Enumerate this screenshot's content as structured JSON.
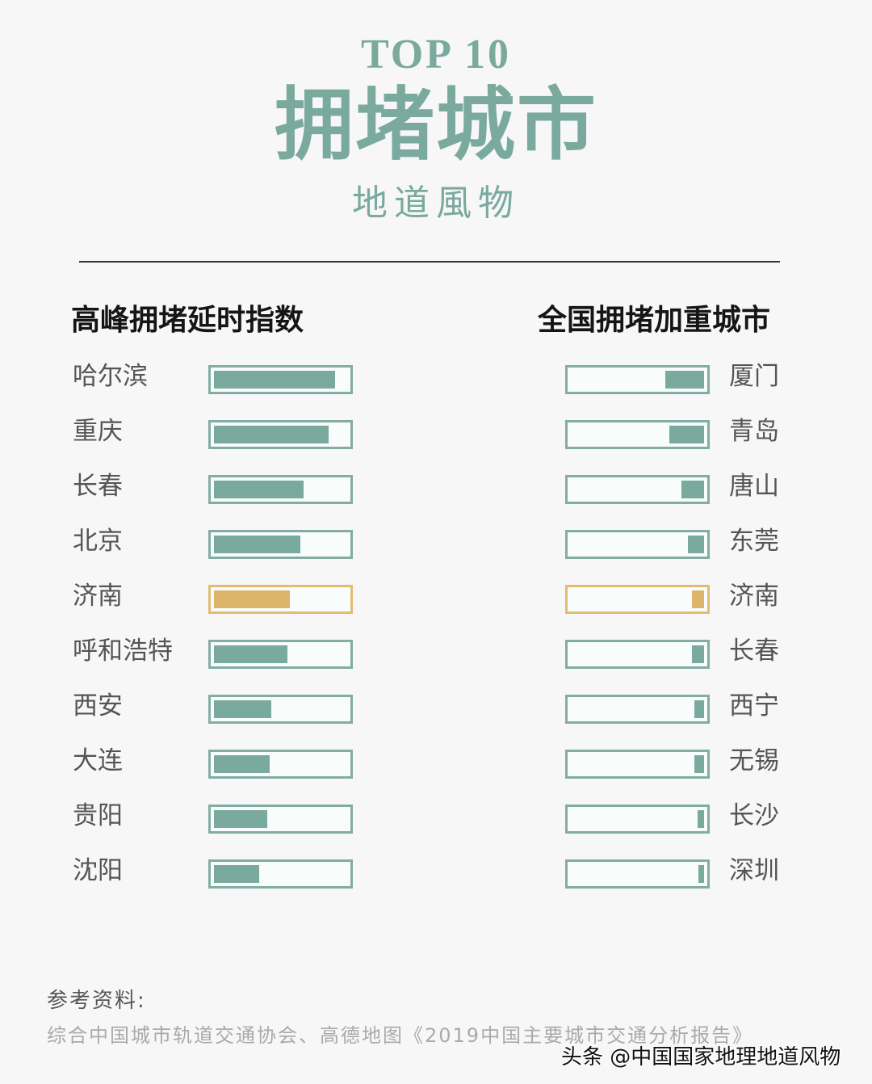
{
  "header": {
    "top_label": "TOP 10",
    "title": "拥堵城市",
    "brand": "地道風物"
  },
  "colors": {
    "accent": "#7aaa9d",
    "highlight": "#dcb56b",
    "box_border": "#83ada2",
    "highlight_border": "#e1bd72"
  },
  "left": {
    "heading": "高峰拥堵延时指数",
    "items": [
      {
        "city": "哈尔滨",
        "value": 0.91,
        "highlight": false
      },
      {
        "city": "重庆",
        "value": 0.86,
        "highlight": false
      },
      {
        "city": "长春",
        "value": 0.67,
        "highlight": false
      },
      {
        "city": "北京",
        "value": 0.65,
        "highlight": false
      },
      {
        "city": "济南",
        "value": 0.57,
        "highlight": true
      },
      {
        "city": "呼和浩特",
        "value": 0.55,
        "highlight": false
      },
      {
        "city": "西安",
        "value": 0.43,
        "highlight": false
      },
      {
        "city": "大连",
        "value": 0.42,
        "highlight": false
      },
      {
        "city": "贵阳",
        "value": 0.4,
        "highlight": false
      },
      {
        "city": "沈阳",
        "value": 0.34,
        "highlight": false
      }
    ]
  },
  "right": {
    "heading": "全国拥堵加重城市",
    "items": [
      {
        "city": "厦门",
        "value": 0.29,
        "highlight": false
      },
      {
        "city": "青岛",
        "value": 0.26,
        "highlight": false
      },
      {
        "city": "唐山",
        "value": 0.17,
        "highlight": false
      },
      {
        "city": "东莞",
        "value": 0.12,
        "highlight": false
      },
      {
        "city": "济南",
        "value": 0.09,
        "highlight": true
      },
      {
        "city": "长春",
        "value": 0.09,
        "highlight": false
      },
      {
        "city": "西宁",
        "value": 0.07,
        "highlight": false
      },
      {
        "city": "无锡",
        "value": 0.07,
        "highlight": false
      },
      {
        "city": "长沙",
        "value": 0.05,
        "highlight": false
      },
      {
        "city": "深圳",
        "value": 0.04,
        "highlight": false
      }
    ]
  },
  "footer": {
    "ref_heading": "参考资料:",
    "ref_text": "综合中国城市轨道交通协会、高德地图《2019中国主要城市交通分析报告》",
    "watermark": "头条 @中国国家地理地道风物"
  },
  "chart_data": [
    {
      "type": "bar",
      "title": "高峰拥堵延时指数",
      "orientation": "horizontal",
      "categories": [
        "哈尔滨",
        "重庆",
        "长春",
        "北京",
        "济南",
        "呼和浩特",
        "西安",
        "大连",
        "贵阳",
        "沈阳"
      ],
      "values": [
        0.91,
        0.86,
        0.67,
        0.65,
        0.57,
        0.55,
        0.43,
        0.42,
        0.4,
        0.34
      ],
      "value_note": "relative bar fill fraction (no axis shown)",
      "highlight": [
        "济南"
      ],
      "grid": false
    },
    {
      "type": "bar",
      "title": "全国拥堵加重城市",
      "orientation": "horizontal, right-aligned",
      "categories": [
        "厦门",
        "青岛",
        "唐山",
        "东莞",
        "济南",
        "长春",
        "西宁",
        "无锡",
        "长沙",
        "深圳"
      ],
      "values": [
        0.29,
        0.26,
        0.17,
        0.12,
        0.09,
        0.09,
        0.07,
        0.07,
        0.05,
        0.04
      ],
      "value_note": "relative bar fill fraction (no axis shown)",
      "highlight": [
        "济南"
      ],
      "grid": false
    }
  ]
}
